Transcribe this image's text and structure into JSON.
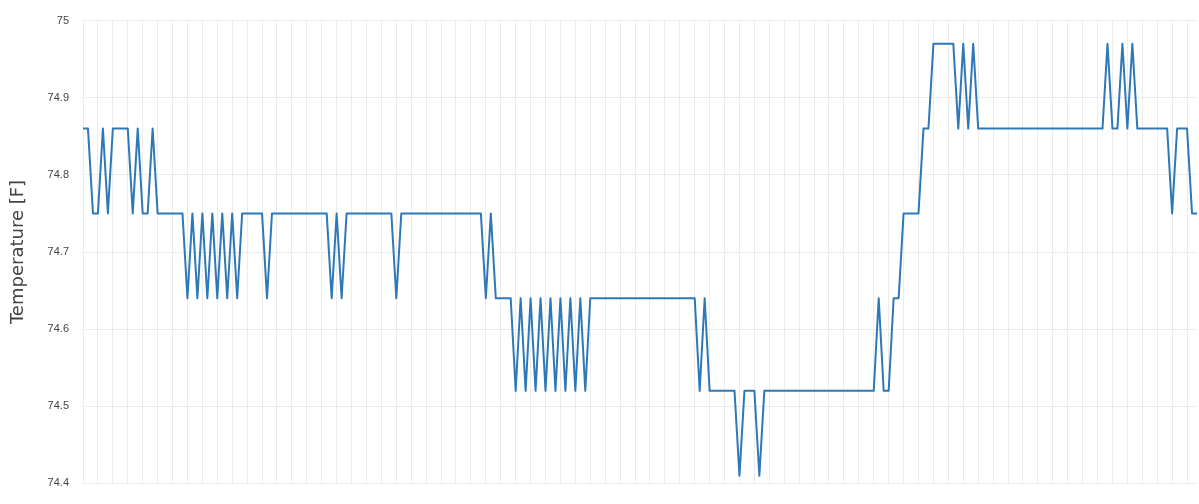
{
  "chart_data": {
    "type": "line",
    "ylabel": "Temperature [F]",
    "categories": [
      null,
      null,
      null,
      null,
      null,
      null,
      null,
      null,
      null,
      null,
      null,
      null,
      null,
      null,
      null,
      null,
      null,
      null,
      null,
      null,
      null,
      null,
      null,
      null,
      null,
      null,
      null,
      null,
      null,
      null,
      null,
      null,
      null,
      null,
      null,
      null,
      null,
      null,
      null,
      null,
      null,
      null,
      null,
      null,
      null,
      null,
      null,
      null,
      null,
      null,
      null,
      null,
      null,
      null,
      null,
      null,
      null,
      null,
      null,
      null,
      null,
      null,
      null,
      null,
      null,
      null,
      null,
      null,
      null,
      null,
      null,
      null,
      null,
      null,
      null,
      null,
      null,
      null,
      null,
      null,
      null,
      null,
      null,
      null,
      null,
      null,
      null,
      null,
      null,
      null,
      null,
      null,
      null,
      null,
      null,
      null,
      null,
      null,
      null,
      null,
      null,
      null,
      null,
      null,
      null,
      null,
      null,
      null,
      null,
      null,
      null,
      null,
      null,
      null,
      null,
      null,
      null,
      null,
      null,
      null,
      null,
      null,
      null,
      null,
      null,
      null,
      null,
      null,
      null,
      null,
      null,
      null,
      null,
      null,
      null,
      null,
      null,
      null,
      null,
      null,
      null,
      null,
      null,
      null,
      null,
      null,
      null,
      null,
      null,
      null,
      null,
      null,
      null,
      null,
      null,
      null,
      null,
      null,
      null,
      null,
      null,
      null,
      null,
      null,
      null,
      null,
      null,
      null,
      null,
      null,
      null,
      null,
      null,
      null,
      null,
      null,
      null,
      null,
      null,
      null,
      null,
      null,
      null,
      null,
      null,
      null,
      null,
      null,
      null,
      null,
      null,
      null,
      null,
      null,
      null,
      null,
      null,
      null,
      null,
      null,
      null,
      null,
      null,
      null,
      null,
      null,
      null,
      null,
      null,
      null,
      null,
      null,
      null,
      null,
      null,
      null,
      null,
      null,
      null,
      null,
      null,
      null,
      null,
      null,
      null
    ],
    "series": [
      {
        "color": "#2e78b7",
        "values": [
          74.86,
          74.86,
          74.75,
          74.75,
          74.86,
          74.75,
          74.86,
          74.86,
          74.86,
          74.86,
          74.75,
          74.86,
          74.75,
          74.75,
          74.86,
          74.75,
          74.75,
          74.75,
          74.75,
          74.75,
          74.75,
          74.64,
          74.75,
          74.64,
          74.75,
          74.64,
          74.75,
          74.64,
          74.75,
          74.64,
          74.75,
          74.64,
          74.75,
          74.75,
          74.75,
          74.75,
          74.75,
          74.64,
          74.75,
          74.75,
          74.75,
          74.75,
          74.75,
          74.75,
          74.75,
          74.75,
          74.75,
          74.75,
          74.75,
          74.75,
          74.64,
          74.75,
          74.64,
          74.75,
          74.75,
          74.75,
          74.75,
          74.75,
          74.75,
          74.75,
          74.75,
          74.75,
          74.75,
          74.64,
          74.75,
          74.75,
          74.75,
          74.75,
          74.75,
          74.75,
          74.75,
          74.75,
          74.75,
          74.75,
          74.75,
          74.75,
          74.75,
          74.75,
          74.75,
          74.75,
          74.75,
          74.64,
          74.75,
          74.64,
          74.64,
          74.64,
          74.64,
          74.52,
          74.64,
          74.52,
          74.64,
          74.52,
          74.64,
          74.52,
          74.64,
          74.52,
          74.64,
          74.52,
          74.64,
          74.52,
          74.64,
          74.52,
          74.64,
          74.64,
          74.64,
          74.64,
          74.64,
          74.64,
          74.64,
          74.64,
          74.64,
          74.64,
          74.64,
          74.64,
          74.64,
          74.64,
          74.64,
          74.64,
          74.64,
          74.64,
          74.64,
          74.64,
          74.64,
          74.64,
          74.52,
          74.64,
          74.52,
          74.52,
          74.52,
          74.52,
          74.52,
          74.52,
          74.41,
          74.52,
          74.52,
          74.52,
          74.41,
          74.52,
          74.52,
          74.52,
          74.52,
          74.52,
          74.52,
          74.52,
          74.52,
          74.52,
          74.52,
          74.52,
          74.52,
          74.52,
          74.52,
          74.52,
          74.52,
          74.52,
          74.52,
          74.52,
          74.52,
          74.52,
          74.52,
          74.52,
          74.64,
          74.52,
          74.52,
          74.64,
          74.64,
          74.75,
          74.75,
          74.75,
          74.75,
          74.86,
          74.86,
          74.97,
          74.97,
          74.97,
          74.97,
          74.97,
          74.86,
          74.97,
          74.86,
          74.97,
          74.86,
          74.86,
          74.86,
          74.86,
          74.86,
          74.86,
          74.86,
          74.86,
          74.86,
          74.86,
          74.86,
          74.86,
          74.86,
          74.86,
          74.86,
          74.86,
          74.86,
          74.86,
          74.86,
          74.86,
          74.86,
          74.86,
          74.86,
          74.86,
          74.86,
          74.86,
          74.97,
          74.86,
          74.86,
          74.97,
          74.86,
          74.97,
          74.86,
          74.86,
          74.86,
          74.86,
          74.86,
          74.86,
          74.86,
          74.75,
          74.86,
          74.86,
          74.86,
          74.75,
          74.75
        ]
      }
    ],
    "ylim": [
      74.4,
      75
    ],
    "yticks": [
      {
        "value": 74.4,
        "label": "74.4"
      },
      {
        "value": 74.5,
        "label": "74.5"
      },
      {
        "value": 74.6,
        "label": "74.6"
      },
      {
        "value": 74.7,
        "label": "74.7"
      },
      {
        "value": 74.8,
        "label": "74.8"
      },
      {
        "value": 74.9,
        "label": "74.9"
      },
      {
        "value": 75,
        "label": "75"
      }
    ],
    "grid": true,
    "tick_labels": "y",
    "marker": "none",
    "line_style": "solid"
  }
}
